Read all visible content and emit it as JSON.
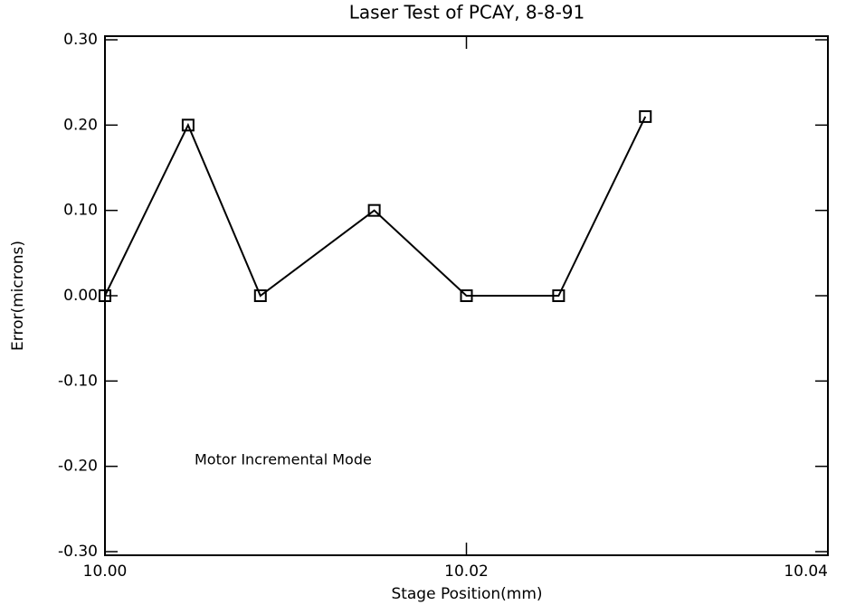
{
  "chart_data": {
    "type": "line",
    "title": "Laser Test of PCAY, 8-8-91",
    "xlabel": "Stage Position(mm)",
    "ylabel": "Error(microns)",
    "annotation": "Motor Incremental Mode",
    "x": [
      10.0,
      10.0046,
      10.0086,
      10.0149,
      10.02,
      10.0251,
      10.0299
    ],
    "series": [
      {
        "color": "#000000",
        "values": [
          0.0,
          0.2,
          0.0,
          0.1,
          0.0,
          0.0,
          0.21
        ]
      }
    ],
    "marker": "square",
    "xlim": [
      10.0,
      10.04
    ],
    "xticks": [
      {
        "value": 10.0,
        "label": "10.00"
      },
      {
        "value": 10.02,
        "label": "10.02"
      },
      {
        "value": 10.04,
        "label": "10.04"
      }
    ],
    "ylim": [
      -0.3,
      0.3
    ],
    "yticks": [
      {
        "value": -0.3,
        "label": "-0.30"
      },
      {
        "value": -0.2,
        "label": "-0.20"
      },
      {
        "value": -0.1,
        "label": "-0.10"
      },
      {
        "value": 0.0,
        "label": "0.00"
      },
      {
        "value": 0.1,
        "label": "0.10"
      },
      {
        "value": 0.2,
        "label": "0.20"
      },
      {
        "value": 0.3,
        "label": "0.30"
      }
    ],
    "grid": false
  }
}
